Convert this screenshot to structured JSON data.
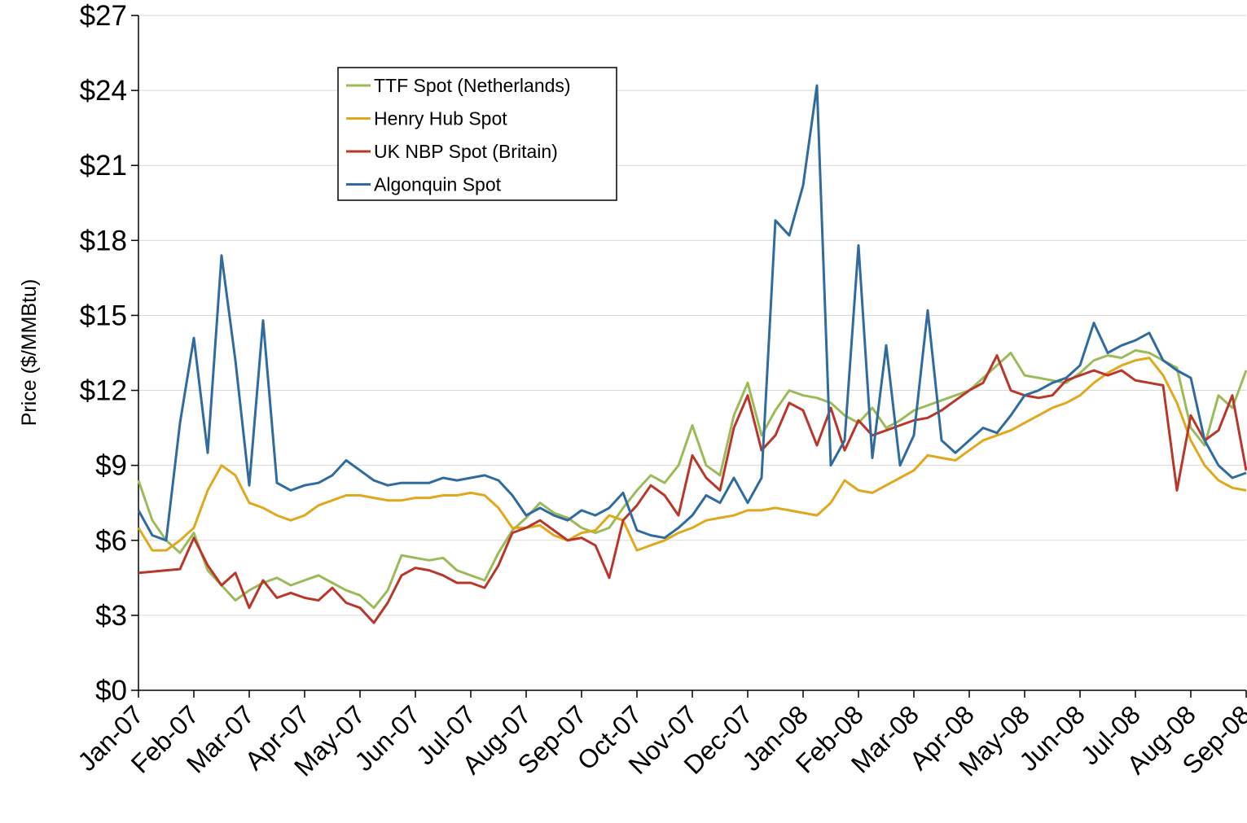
{
  "chart_data": {
    "type": "line",
    "y_label": "Price ($/MMBtu)",
    "categories": [
      "Jan-07",
      null,
      null,
      null,
      "Feb-07",
      null,
      null,
      null,
      "Mar-07",
      null,
      null,
      null,
      "Apr-07",
      null,
      null,
      null,
      "May-07",
      null,
      null,
      null,
      "Jun-07",
      null,
      null,
      null,
      "Jul-07",
      null,
      null,
      null,
      "Aug-07",
      null,
      null,
      null,
      "Sep-07",
      null,
      null,
      null,
      "Oct-07",
      null,
      null,
      null,
      "Nov-07",
      null,
      null,
      null,
      "Dec-07",
      null,
      null,
      null,
      "Jan-08",
      null,
      null,
      null,
      "Feb-08",
      null,
      null,
      null,
      "Mar-08",
      null,
      null,
      null,
      "Apr-08",
      null,
      null,
      null,
      "May-08",
      null,
      null,
      null,
      "Jun-08",
      null,
      null,
      null,
      "Jul-08",
      null,
      null,
      null,
      "Aug-08",
      null,
      null,
      null,
      "Sep-08"
    ],
    "series": [
      {
        "name": "TTF Spot (Netherlands)",
        "color": "#9bbb59",
        "values": [
          8.4,
          6.8,
          6.0,
          5.5,
          6.3,
          4.8,
          4.2,
          3.6,
          4.0,
          4.3,
          4.5,
          4.2,
          4.4,
          4.6,
          4.3,
          4.0,
          3.8,
          3.3,
          4.0,
          5.4,
          5.3,
          5.2,
          5.3,
          4.8,
          4.6,
          4.4,
          5.5,
          6.4,
          6.9,
          7.5,
          7.1,
          6.9,
          6.5,
          6.3,
          6.5,
          7.3,
          8.0,
          8.6,
          8.3,
          9.0,
          10.6,
          9.0,
          8.6,
          11.0,
          12.3,
          10.2,
          11.2,
          12.0,
          11.8,
          11.7,
          11.5,
          11.0,
          10.7,
          11.3,
          10.5,
          10.8,
          11.2,
          11.4,
          11.6,
          11.8,
          12.0,
          12.5,
          13.0,
          13.5,
          12.6,
          12.5,
          12.4,
          12.3,
          12.7,
          13.2,
          13.4,
          13.3,
          13.6,
          13.5,
          13.2,
          12.9,
          10.5,
          9.8,
          11.8,
          11.3,
          12.8
        ]
      },
      {
        "name": "Henry Hub Spot",
        "color": "#e0a81c",
        "values": [
          6.5,
          5.6,
          5.6,
          6.0,
          6.5,
          8.0,
          9.0,
          8.6,
          7.5,
          7.3,
          7.0,
          6.8,
          7.0,
          7.4,
          7.6,
          7.8,
          7.8,
          7.7,
          7.6,
          7.6,
          7.7,
          7.7,
          7.8,
          7.8,
          7.9,
          7.8,
          7.3,
          6.5,
          6.5,
          6.6,
          6.2,
          6.0,
          6.3,
          6.4,
          7.0,
          6.8,
          5.6,
          5.8,
          6.0,
          6.3,
          6.5,
          6.8,
          6.9,
          7.0,
          7.2,
          7.2,
          7.3,
          7.2,
          7.1,
          7.0,
          7.5,
          8.4,
          8.0,
          7.9,
          8.2,
          8.5,
          8.8,
          9.4,
          9.3,
          9.2,
          9.6,
          10.0,
          10.2,
          10.4,
          10.7,
          11.0,
          11.3,
          11.5,
          11.8,
          12.3,
          12.7,
          13.0,
          13.2,
          13.3,
          12.6,
          11.5,
          10.0,
          9.0,
          8.4,
          8.1,
          8.0
        ]
      },
      {
        "name": "UK NBP Spot (Britain)",
        "color": "#b8372a",
        "values": [
          4.7,
          4.75,
          4.8,
          4.85,
          6.1,
          5.0,
          4.2,
          4.7,
          3.3,
          4.4,
          3.7,
          3.9,
          3.7,
          3.6,
          4.1,
          3.5,
          3.3,
          2.7,
          3.5,
          4.6,
          4.9,
          4.8,
          4.6,
          4.3,
          4.3,
          4.1,
          5.0,
          6.3,
          6.5,
          6.8,
          6.4,
          6.0,
          6.1,
          5.8,
          4.5,
          6.8,
          7.4,
          8.2,
          7.8,
          7.0,
          9.4,
          8.5,
          8.0,
          10.5,
          11.8,
          9.6,
          10.2,
          11.5,
          11.2,
          9.8,
          11.3,
          9.6,
          10.8,
          10.2,
          10.4,
          10.6,
          10.8,
          10.9,
          11.2,
          11.6,
          12.0,
          12.3,
          13.4,
          12.0,
          11.8,
          11.7,
          11.8,
          12.4,
          12.6,
          12.8,
          12.6,
          12.8,
          12.4,
          12.3,
          12.2,
          8.0,
          11.0,
          10.0,
          10.4,
          11.8,
          8.8
        ]
      },
      {
        "name": "Algonquin Spot",
        "color": "#2f6b9f",
        "values": [
          7.2,
          6.2,
          6.0,
          10.7,
          14.1,
          9.5,
          17.4,
          13.2,
          8.2,
          14.8,
          8.3,
          8.0,
          8.2,
          8.3,
          8.6,
          9.2,
          8.8,
          8.4,
          8.2,
          8.3,
          8.3,
          8.3,
          8.5,
          8.4,
          8.5,
          8.6,
          8.4,
          7.8,
          7.0,
          7.3,
          7.0,
          6.8,
          7.2,
          7.0,
          7.3,
          7.9,
          6.4,
          6.2,
          6.1,
          6.5,
          7.0,
          7.8,
          7.5,
          8.5,
          7.5,
          8.5,
          18.8,
          18.2,
          20.2,
          24.2,
          9.0,
          10.0,
          17.8,
          9.3,
          13.8,
          9.0,
          10.2,
          15.2,
          10.0,
          9.5,
          10.0,
          10.5,
          10.3,
          11.0,
          11.8,
          12.0,
          12.3,
          12.5,
          13.0,
          14.7,
          13.5,
          13.8,
          14.0,
          14.3,
          13.2,
          12.8,
          12.5,
          10.0,
          9.0,
          8.5,
          8.7
        ]
      }
    ],
    "ylim": [
      0,
      27
    ],
    "yticks": [
      {
        "value": 0,
        "label": "$0"
      },
      {
        "value": 3,
        "label": "$3"
      },
      {
        "value": 6,
        "label": "$6"
      },
      {
        "value": 9,
        "label": "$9"
      },
      {
        "value": 12,
        "label": "$12"
      },
      {
        "value": 15,
        "label": "$15"
      },
      {
        "value": 18,
        "label": "$18"
      },
      {
        "value": 21,
        "label": "$21"
      },
      {
        "value": 24,
        "label": "$24"
      },
      {
        "value": 27,
        "label": "$27"
      }
    ],
    "grid": true,
    "legend": "upper left"
  }
}
